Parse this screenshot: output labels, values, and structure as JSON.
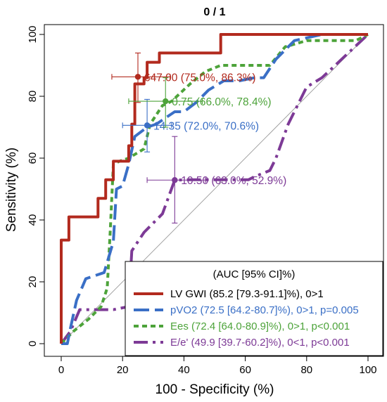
{
  "chart_data": {
    "type": "line",
    "title": "0 / 1",
    "xlabel": "100 - Specificity (%)",
    "ylabel": "Sensitivity (%)",
    "xlim": [
      0,
      100
    ],
    "ylim": [
      0,
      100
    ],
    "xticks": [
      "0",
      "20",
      "40",
      "60",
      "80",
      "100"
    ],
    "yticks": [
      "0",
      "20",
      "40",
      "60",
      "80",
      "100"
    ],
    "grid": false,
    "diagonal_reference": true,
    "legend": {
      "position": "bottom-right",
      "title": "(AUC [95% CI]%)",
      "entries": [
        "LV GWI (85.2 [79.3-91.1]%), 0>1",
        "pVO2 (72.5 [64.2-80.7]%), 0>1, p=0.005",
        "Ees (72.4 [64.0-80.9]%), 0>1, p<0.001",
        "E/e' (49.9 [39.7-60.2]%), 0<1, p<0.001"
      ]
    },
    "series": [
      {
        "name": "LV GWI",
        "color": "#b22a1e",
        "dash": "solid",
        "x": [
          0,
          0,
          2.5,
          2.5,
          12,
          12,
          14.5,
          14.5,
          17,
          17,
          22,
          22,
          23,
          23,
          24,
          24,
          27,
          27,
          28,
          28,
          32,
          32,
          35,
          35,
          52,
          52,
          100
        ],
        "y": [
          0,
          33.5,
          33.5,
          41,
          41,
          47,
          47,
          53,
          53,
          59,
          59,
          64,
          64,
          71,
          71,
          84,
          84,
          86,
          86,
          91,
          91,
          94,
          94,
          94,
          94,
          100,
          100
        ],
        "threshold": {
          "label": "647.00 (75.0%, 86.3%)",
          "x": 25,
          "y": 86.3,
          "xerr": [
            16.5,
            35.5
          ],
          "yerr": [
            78,
            94
          ]
        }
      },
      {
        "name": "pVO2",
        "color": "#3a6fc6",
        "dash": "long-dash",
        "x": [
          0,
          2,
          3,
          5,
          8,
          14,
          17,
          18,
          20,
          22,
          24,
          28,
          31,
          34,
          37,
          40,
          44,
          48,
          53,
          58,
          63,
          66,
          70,
          76,
          85,
          100
        ],
        "y": [
          0,
          0,
          5,
          14,
          21,
          23,
          33,
          50,
          51,
          58,
          67,
          70,
          71,
          73,
          75,
          75,
          78,
          82,
          85,
          85,
          86,
          86,
          92,
          98,
          100,
          100
        ],
        "threshold": {
          "label": "14.35 (72.0%, 70.6%)",
          "x": 28,
          "y": 70.6,
          "xerr": [
            20,
            36
          ],
          "yerr": [
            62,
            79
          ]
        }
      },
      {
        "name": "Ees",
        "color": "#4da33a",
        "dash": "short-dash",
        "x": [
          0,
          4,
          9,
          13,
          15,
          16,
          17,
          19,
          22,
          27,
          29,
          33,
          36,
          42,
          47,
          52,
          58,
          68,
          73,
          80,
          90,
          96,
          100
        ],
        "y": [
          0,
          4,
          8,
          12,
          18,
          37,
          58,
          59,
          60,
          63,
          71,
          77,
          78.4,
          84,
          88,
          90,
          90,
          90,
          96,
          98,
          98,
          98,
          100
        ],
        "threshold": {
          "label": "0.75 (66.0%, 78.4%)",
          "x": 34,
          "y": 78.4,
          "xerr": [
            22,
            46
          ],
          "yerr": [
            70,
            86
          ]
        }
      },
      {
        "name": "E/e'",
        "color": "#7d3a96",
        "dash": "dash-dot",
        "x": [
          0,
          3,
          6,
          12,
          17,
          22,
          23,
          27,
          33,
          37,
          42,
          50,
          61,
          63,
          68,
          70,
          74,
          80,
          85,
          100
        ],
        "y": [
          0,
          4,
          11,
          11,
          11,
          12,
          30,
          36,
          42,
          52.9,
          53,
          53,
          53,
          54,
          56,
          60,
          71,
          83,
          86,
          100
        ],
        "threshold": {
          "label": "10.50 (63.0%, 52.9%)",
          "x": 37,
          "y": 52.9,
          "xerr": [
            28,
            47
          ],
          "yerr": [
            39,
            67
          ]
        }
      }
    ]
  }
}
